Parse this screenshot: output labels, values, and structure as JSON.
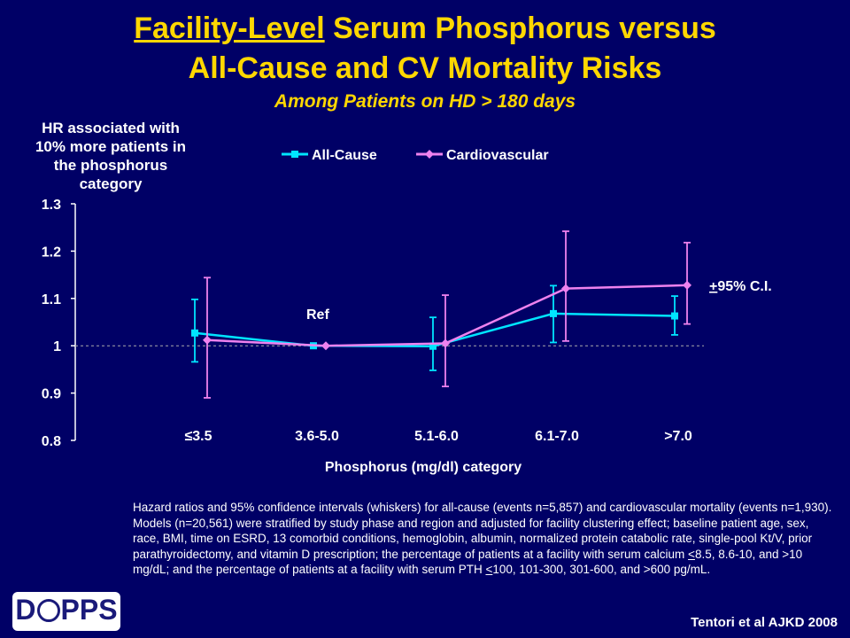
{
  "title": {
    "part1_underlined": "Facility-Level",
    "part1_rest": " Serum Phosphorus versus",
    "line2": "All-Cause and CV Mortality Risks",
    "subtitle": "Among Patients on HD > 180 days"
  },
  "chart_data": {
    "type": "line",
    "categories": [
      "≤3.5",
      "3.6-5.0",
      "5.1-6.0",
      "6.1-7.0",
      ">7.0"
    ],
    "xlabel": "Phosphorus (mg/dl) category",
    "ylabel": "HR associated with 10% more patients in the phosphorus category",
    "ylim": [
      0.8,
      1.3
    ],
    "yticks": [
      "1.3",
      "1.2",
      "1.1",
      "1",
      "0.9",
      "0.8"
    ],
    "reference_line": 1.0,
    "series": [
      {
        "name": "All-Cause",
        "color": "#00E5FF",
        "marker": "square",
        "values": [
          1.027,
          1.0,
          0.999,
          1.068,
          1.063
        ],
        "upper": [
          1.098,
          1.0,
          1.06,
          1.127,
          1.105
        ],
        "lower": [
          0.966,
          1.0,
          0.948,
          1.007,
          1.023
        ]
      },
      {
        "name": "Cardiovascular",
        "color": "#EE82EE",
        "marker": "diamond",
        "values": [
          1.012,
          1.0,
          1.005,
          1.121,
          1.128
        ],
        "upper": [
          1.144,
          1.0,
          1.107,
          1.242,
          1.218
        ],
        "lower": [
          0.89,
          1.0,
          0.914,
          1.01,
          1.046
        ]
      }
    ],
    "annotations": {
      "ref": "Ref",
      "ci_plusminus": "+",
      "ci_rest": "95% C.I."
    },
    "legend_position": "top-center"
  },
  "footnote": {
    "part1": "Hazard ratios and 95% confidence intervals (whiskers) for all-cause (events n=5,857) and cardiovascular mortality (events n=1,930). Models (n=20,561) were stratified by study phase and region and adjusted for facility clustering effect; baseline patient age, sex, race, BMI, time on ESRD, 13 comorbid conditions, hemoglobin, albumin, normalized protein catabolic rate, single-pool Kt/V, prior parathyroidectomy, and vitamin D prescription; the percentage of patients at a facility with serum calcium ",
    "lt1": "<",
    "part2": "8.5, 8.6-10, and >10 mg/dL; and the percentage of patients at a facility with serum PTH ",
    "lt2": "<",
    "part3": "100, 101-300, 301-600, and >600 pg/mL."
  },
  "citation": "Tentori et al AJKD 2008",
  "logo_text": "DOPPS"
}
